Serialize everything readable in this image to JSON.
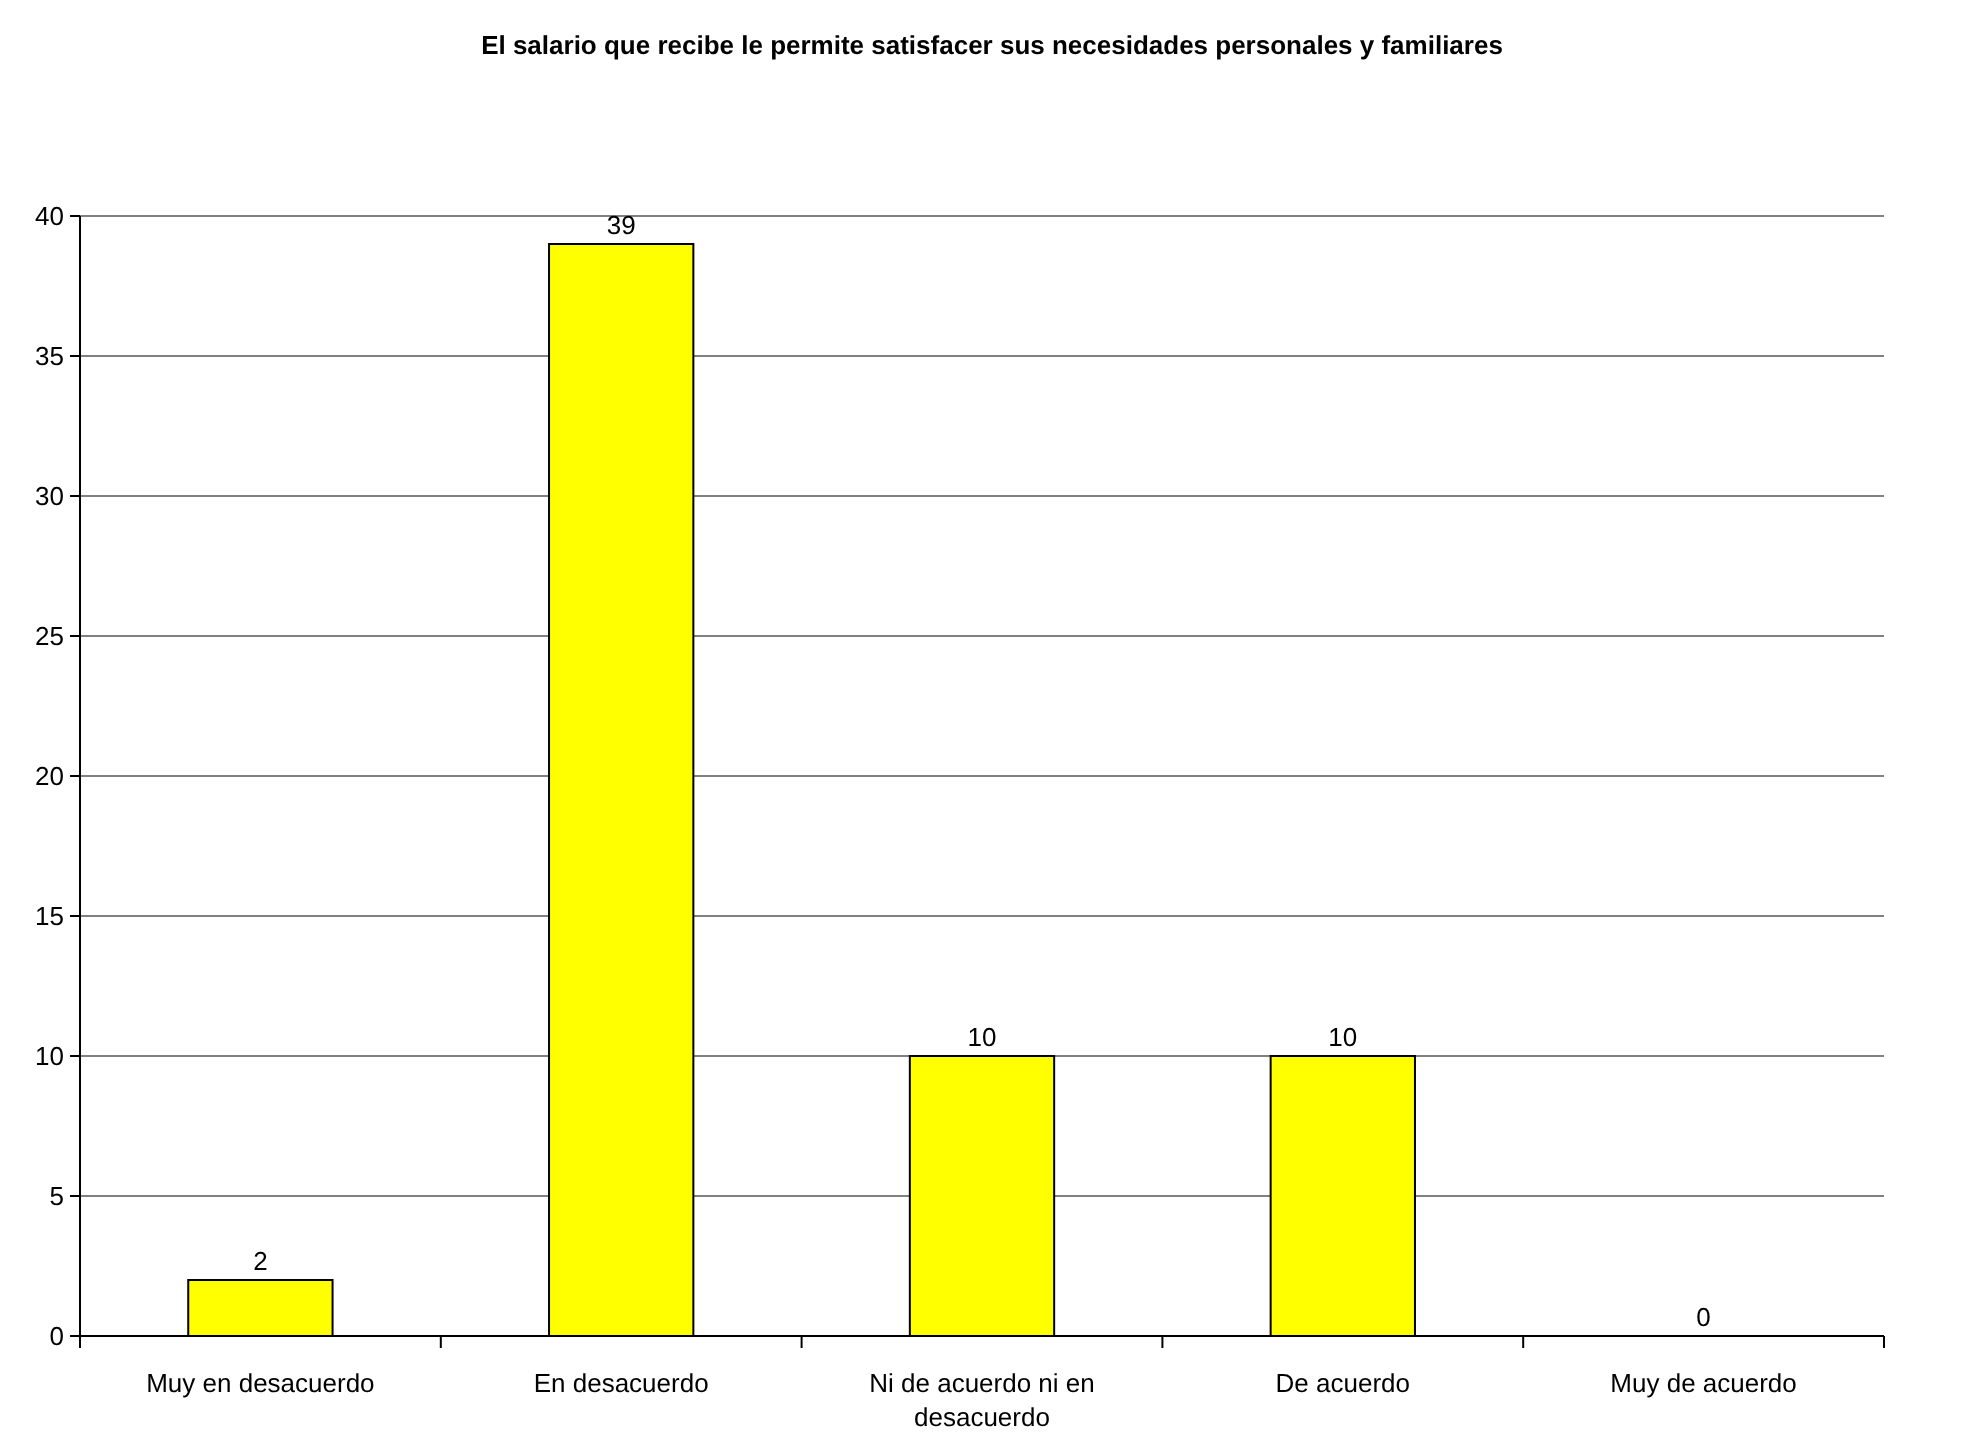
{
  "chart_data": {
    "type": "bar",
    "title": "El salario que recibe le permite satisfacer sus necesidades personales y familiares",
    "categories": [
      "Muy en desacuerdo",
      "En desacuerdo",
      "Ni de acuerdo ni en desacuerdo",
      "De acuerdo",
      "Muy de acuerdo"
    ],
    "values": [
      2,
      39,
      10,
      10,
      0
    ],
    "color": "#ffff00",
    "ylim": [
      0,
      40
    ],
    "yticks": [
      0,
      5,
      10,
      15,
      20,
      25,
      30,
      35,
      40
    ],
    "grid": "y",
    "data_labels": true
  }
}
